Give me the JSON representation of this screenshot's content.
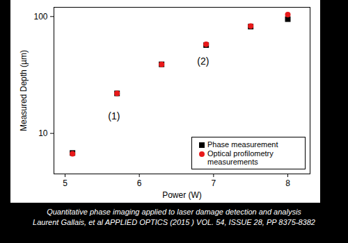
{
  "chart_data": {
    "type": "scatter",
    "x_label": "Power (W)",
    "y_label": "Measured Depth (µm)",
    "x": [
      5.1,
      5.7,
      6.3,
      6.9,
      7.5,
      8.0
    ],
    "series": [
      {
        "name": "Phase measurement",
        "color": "#000000",
        "marker": "square",
        "values": [
          6.8,
          22,
          39,
          57,
          82,
          95
        ]
      },
      {
        "name": "Optical profilometry measurements",
        "color": "#e8191a",
        "marker": "circle",
        "values": [
          6.7,
          22,
          39,
          58,
          83,
          104
        ]
      }
    ],
    "annotations": [
      {
        "text": "(1)",
        "x": 5.66,
        "y": 14
      },
      {
        "text": "(2)",
        "x": 6.86,
        "y": 41
      }
    ],
    "xlim": [
      4.85,
      8.3
    ],
    "xticks": [
      5,
      6,
      7,
      8
    ],
    "ylim": [
      4.5,
      120
    ],
    "yticks": [
      10,
      100
    ],
    "log": "y",
    "grid": false,
    "legend": "lower right",
    "caption": [
      "Quantitative phase imaging applied to laser damage detection and analysis",
      "Laurent Gallais, et al APPLIED OPTICS (2015 ) VOL. 54, ISSUE 28, PP 8375-8382"
    ]
  }
}
